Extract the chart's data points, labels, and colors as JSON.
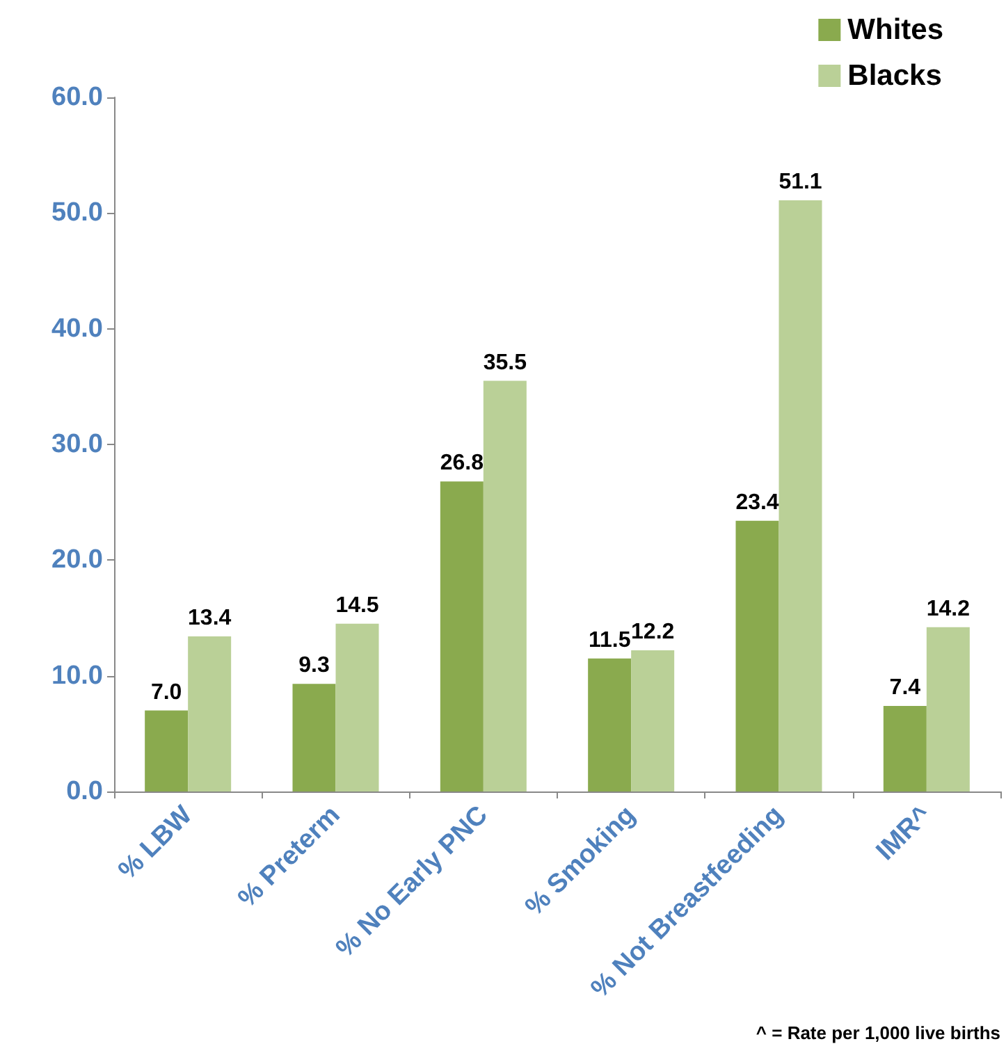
{
  "chart_data": {
    "type": "bar",
    "categories": [
      "% LBW",
      "% Preterm",
      "% No Early PNC",
      "% Smoking",
      "% Not Breastfeeding",
      "IMR^"
    ],
    "series": [
      {
        "name": "Whites",
        "color": "#8aaa4e",
        "values": [
          7.0,
          9.3,
          26.8,
          11.5,
          23.4,
          7.4
        ]
      },
      {
        "name": "Blacks",
        "color": "#bad097",
        "values": [
          13.4,
          14.5,
          35.5,
          12.2,
          51.1,
          14.2
        ]
      }
    ],
    "ylim": [
      0,
      60
    ],
    "yticks": [
      {
        "value": 0,
        "label": "0.0"
      },
      {
        "value": 10,
        "label": "10.0"
      },
      {
        "value": 20,
        "label": "20.0"
      },
      {
        "value": 30,
        "label": "30.0"
      },
      {
        "value": 40,
        "label": "40.0"
      },
      {
        "value": 50,
        "label": "50.0"
      },
      {
        "value": 60,
        "label": "60.0"
      }
    ],
    "value_labels": [
      [
        "7.0",
        "9.3",
        "26.8",
        "11.5",
        "23.4",
        "7.4"
      ],
      [
        "13.4",
        "14.5",
        "35.5",
        "12.2",
        "51.1",
        "14.2"
      ]
    ],
    "grid": false,
    "legend": "top right",
    "annotations": [
      "^ = Rate per 1,000 live births"
    ]
  }
}
